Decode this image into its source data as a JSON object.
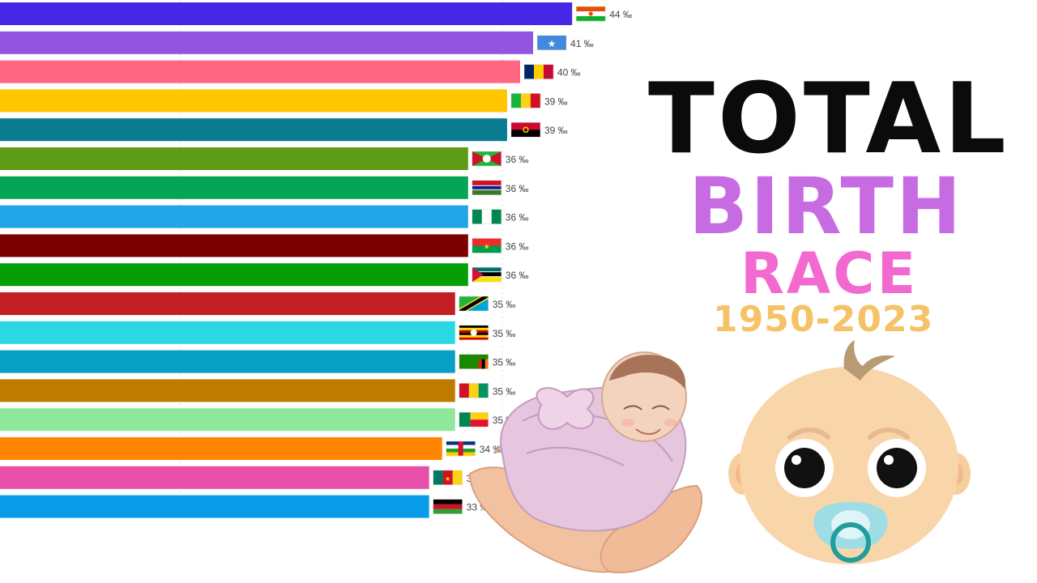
{
  "title": {
    "line1": "TOTAL",
    "line2": "BIRTH",
    "line3": "RACE",
    "years": "1950-2023"
  },
  "colors": {
    "title_black": "#0b0b0b",
    "title_birth": "#c76be3",
    "title_race": "#f26ad0",
    "title_years": "#f5c267"
  },
  "chart_data": {
    "type": "bar",
    "orientation": "horizontal",
    "unit": "‰",
    "xlim": [
      0,
      47
    ],
    "grid": true,
    "items": [
      {
        "value": 44,
        "label": "44 ‰",
        "color": "#4627e6",
        "flag": "niger-flag"
      },
      {
        "value": 41,
        "label": "41 ‰",
        "color": "#9355e0",
        "flag": "somalia-flag"
      },
      {
        "value": 40,
        "label": "40 ‰",
        "color": "#ff6683",
        "flag": "chad-flag"
      },
      {
        "value": 39,
        "label": "39 ‰",
        "color": "#ffc600",
        "flag": "mali-flag"
      },
      {
        "value": 39,
        "label": "39 ‰",
        "color": "#097c92",
        "flag": "angola-flag"
      },
      {
        "value": 36,
        "label": "36 ‰",
        "color": "#5e9b17",
        "flag": "burundi-flag"
      },
      {
        "value": 36,
        "label": "36 ‰",
        "color": "#05a556",
        "flag": "gambia-flag"
      },
      {
        "value": 36,
        "label": "36 ‰",
        "color": "#21a4e8",
        "flag": "nigeria-flag"
      },
      {
        "value": 36,
        "label": "36 ‰",
        "color": "#7b0000",
        "flag": "burkina-faso-flag"
      },
      {
        "value": 36,
        "label": "36 ‰",
        "color": "#049e07",
        "flag": "mozambique-flag"
      },
      {
        "value": 35,
        "label": "35 ‰",
        "color": "#c31f25",
        "flag": "tanzania-flag"
      },
      {
        "value": 35,
        "label": "35 ‰",
        "color": "#2ad8e3",
        "flag": "uganda-flag"
      },
      {
        "value": 35,
        "label": "35 ‰",
        "color": "#07a0c3",
        "flag": "zambia-flag"
      },
      {
        "value": 35,
        "label": "35 ‰",
        "color": "#bf7b00",
        "flag": "guinea-flag"
      },
      {
        "value": 35,
        "label": "35 ‰",
        "color": "#8fe89a",
        "flag": "benin-flag"
      },
      {
        "value": 34,
        "label": "34 ‰",
        "color": "#ff8500",
        "flag": "central-african-republic-flag"
      },
      {
        "value": 33,
        "label": "33 ‰",
        "color": "#e84fa9",
        "flag": "cameroon-flag"
      },
      {
        "value": 33,
        "label": "33 ‰",
        "color": "#089ce8",
        "flag": "malawi-flag"
      }
    ]
  },
  "illustrations": {
    "left": "baby-in-hands-illustration",
    "right": "cartoon-baby-face-illustration"
  }
}
